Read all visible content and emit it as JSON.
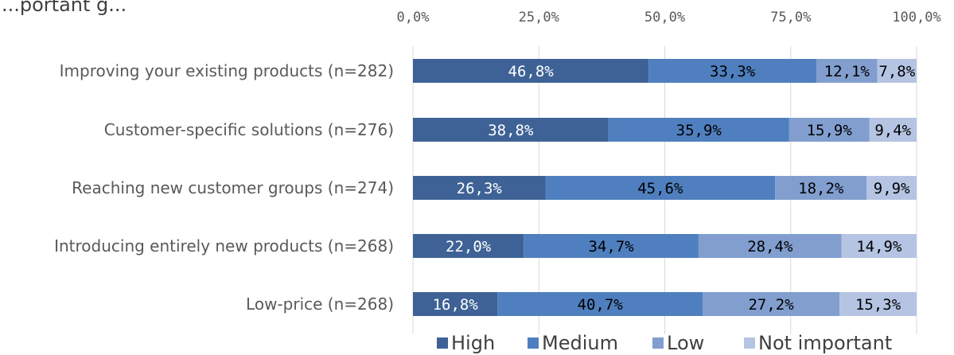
{
  "chart_data": {
    "type": "bar",
    "orientation": "horizontal",
    "stacked": true,
    "title": "",
    "xlabel": "",
    "ylabel": "",
    "xlim": [
      0,
      100
    ],
    "grid": true,
    "legend_position": "bottom",
    "header_fragment": "...portant g...",
    "x_ticks": [
      "0,0%",
      "25,0%",
      "50,0%",
      "75,0%",
      "100,0%"
    ],
    "categories": [
      "Improving your existing products (n=282)",
      "Customer-specific solutions (n=276)",
      "Reaching new customer groups (n=274)",
      "Introducing entirely new products (n=268)",
      "Low-price (n=268)"
    ],
    "series": [
      {
        "name": "High",
        "color": "#3e6296",
        "label_color": "#ffffff",
        "values": [
          46.8,
          38.8,
          26.3,
          22.0,
          16.8
        ],
        "labels": [
          "46,8%",
          "38,8%",
          "26,3%",
          "22,0%",
          "16,8%"
        ]
      },
      {
        "name": "Medium",
        "color": "#4f7fbf",
        "label_color": "#000000",
        "values": [
          33.3,
          35.9,
          45.6,
          34.7,
          40.7
        ],
        "labels": [
          "33,3%",
          "35,9%",
          "45,6%",
          "34,7%",
          "40,7%"
        ]
      },
      {
        "name": "Low",
        "color": "#819ecf",
        "label_color": "#000000",
        "values": [
          12.1,
          15.9,
          18.2,
          28.4,
          27.2
        ],
        "labels": [
          "12,1%",
          "15,9%",
          "18,2%",
          "28,4%",
          "27,2%"
        ]
      },
      {
        "name": "Not important",
        "color": "#b5c4e2",
        "label_color": "#000000",
        "values": [
          7.8,
          9.4,
          9.9,
          14.9,
          15.3
        ],
        "labels": [
          "7,8%",
          "9,4%",
          "9,9%",
          "14,9%",
          "15,3%"
        ]
      }
    ]
  }
}
